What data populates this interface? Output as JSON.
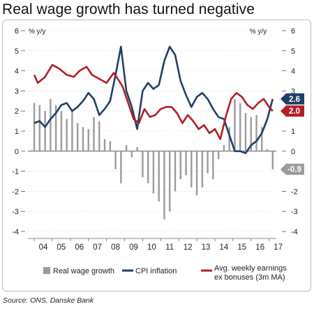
{
  "title": "Real wage growth has turned negative",
  "source": "Source: ONS, Danske Bank",
  "colors": {
    "real_wage": "#9b9b9b",
    "cpi": "#1f3f66",
    "earnings": "#b01f24",
    "grid": "#bdbdbd"
  },
  "chart_data": {
    "type": "bar+line",
    "left_axis": {
      "unit_label": "% y/y",
      "ylim": [
        -4,
        6
      ],
      "ticks": [
        "6",
        "5",
        "4",
        "3",
        "2",
        "1",
        "0",
        "-1",
        "-2",
        "-3",
        "-4"
      ]
    },
    "right_axis": {
      "unit_label": "% y/y",
      "ylim": [
        -4,
        6
      ],
      "ticks": [
        "6",
        "5",
        "4",
        "3",
        "2",
        "1",
        "0",
        "-1",
        "-2",
        "-3",
        "-4"
      ]
    },
    "x_ticks": [
      "04",
      "05",
      "06",
      "07",
      "08",
      "09",
      "10",
      "11",
      "12",
      "13",
      "14",
      "15",
      "16",
      "17"
    ],
    "x_range": [
      2004,
      2017.3
    ],
    "legend": {
      "real_wage": "Real wage growth",
      "cpi": "CPI inflation",
      "earnings_line1": "Avg. weekly earnings",
      "earnings_line2": "ex bonuses (3m MA)"
    },
    "end_labels": {
      "cpi": "2.6",
      "earnings": "2.0",
      "real_wage": "-0.9"
    },
    "series": [
      {
        "name": "Real wage growth",
        "kind": "bar",
        "axis": "left",
        "points": [
          [
            2004.0,
            2.4
          ],
          [
            2004.3,
            2.3
          ],
          [
            2004.6,
            2.0
          ],
          [
            2004.9,
            2.6
          ],
          [
            2005.2,
            2.3
          ],
          [
            2005.5,
            2.0
          ],
          [
            2005.8,
            1.6
          ],
          [
            2006.1,
            2.0
          ],
          [
            2006.4,
            1.4
          ],
          [
            2006.7,
            1.2
          ],
          [
            2007.0,
            1.1
          ],
          [
            2007.3,
            1.7
          ],
          [
            2007.6,
            1.5
          ],
          [
            2007.9,
            0.6
          ],
          [
            2008.2,
            0.5
          ],
          [
            2008.5,
            -0.9
          ],
          [
            2008.8,
            -1.6
          ],
          [
            2009.1,
            0.3
          ],
          [
            2009.4,
            -0.3
          ],
          [
            2009.7,
            0.2
          ],
          [
            2010.0,
            -1.3
          ],
          [
            2010.3,
            -1.6
          ],
          [
            2010.6,
            -2.1
          ],
          [
            2010.9,
            -2.5
          ],
          [
            2011.2,
            -3.4
          ],
          [
            2011.5,
            -3.0
          ],
          [
            2011.8,
            -2.0
          ],
          [
            2012.1,
            -1.4
          ],
          [
            2012.4,
            -1.2
          ],
          [
            2012.7,
            -1.8
          ],
          [
            2013.0,
            -2.2
          ],
          [
            2013.3,
            -1.8
          ],
          [
            2013.6,
            -1.1
          ],
          [
            2013.9,
            -1.4
          ],
          [
            2014.2,
            -0.4
          ],
          [
            2014.5,
            0.3
          ],
          [
            2014.8,
            1.2
          ],
          [
            2015.1,
            2.6
          ],
          [
            2015.4,
            2.4
          ],
          [
            2015.7,
            1.9
          ],
          [
            2016.0,
            1.7
          ],
          [
            2016.3,
            1.8
          ],
          [
            2016.6,
            1.2
          ],
          [
            2016.9,
            0.1
          ],
          [
            2017.2,
            -0.9
          ]
        ]
      },
      {
        "name": "CPI inflation",
        "kind": "line",
        "axis": "right",
        "points": [
          [
            2004.0,
            1.4
          ],
          [
            2004.3,
            1.5
          ],
          [
            2004.6,
            1.2
          ],
          [
            2004.9,
            1.6
          ],
          [
            2005.2,
            1.9
          ],
          [
            2005.5,
            2.3
          ],
          [
            2005.8,
            2.4
          ],
          [
            2006.1,
            2.0
          ],
          [
            2006.4,
            2.2
          ],
          [
            2006.7,
            2.5
          ],
          [
            2007.0,
            2.9
          ],
          [
            2007.3,
            2.6
          ],
          [
            2007.6,
            1.8
          ],
          [
            2007.9,
            2.1
          ],
          [
            2008.2,
            2.5
          ],
          [
            2008.5,
            3.8
          ],
          [
            2008.8,
            5.2
          ],
          [
            2009.1,
            3.0
          ],
          [
            2009.4,
            2.2
          ],
          [
            2009.7,
            1.1
          ],
          [
            2010.0,
            3.0
          ],
          [
            2010.3,
            3.4
          ],
          [
            2010.6,
            3.1
          ],
          [
            2010.9,
            3.3
          ],
          [
            2011.2,
            4.5
          ],
          [
            2011.5,
            5.2
          ],
          [
            2011.8,
            4.8
          ],
          [
            2012.1,
            3.5
          ],
          [
            2012.4,
            2.8
          ],
          [
            2012.7,
            2.2
          ],
          [
            2013.0,
            2.7
          ],
          [
            2013.3,
            2.9
          ],
          [
            2013.6,
            2.6
          ],
          [
            2013.9,
            2.1
          ],
          [
            2014.2,
            1.7
          ],
          [
            2014.5,
            1.6
          ],
          [
            2014.8,
            0.8
          ],
          [
            2015.1,
            0.0
          ],
          [
            2015.4,
            0.0
          ],
          [
            2015.7,
            -0.1
          ],
          [
            2016.0,
            0.3
          ],
          [
            2016.3,
            0.5
          ],
          [
            2016.6,
            0.9
          ],
          [
            2016.9,
            1.6
          ],
          [
            2017.2,
            2.6
          ]
        ]
      },
      {
        "name": "Avg. weekly earnings ex bonuses (3m MA)",
        "kind": "line",
        "axis": "right",
        "points": [
          [
            2004.0,
            3.8
          ],
          [
            2004.2,
            3.4
          ],
          [
            2004.6,
            3.7
          ],
          [
            2005.0,
            4.3
          ],
          [
            2005.4,
            4.1
          ],
          [
            2005.8,
            3.8
          ],
          [
            2006.2,
            3.7
          ],
          [
            2006.5,
            4.0
          ],
          [
            2006.9,
            4.2
          ],
          [
            2007.2,
            3.8
          ],
          [
            2007.6,
            3.6
          ],
          [
            2008.0,
            3.4
          ],
          [
            2008.4,
            3.9
          ],
          [
            2008.7,
            3.5
          ],
          [
            2008.9,
            3.2
          ],
          [
            2009.2,
            2.4
          ],
          [
            2009.5,
            1.6
          ],
          [
            2009.8,
            1.4
          ],
          [
            2010.1,
            2.1
          ],
          [
            2010.4,
            1.7
          ],
          [
            2010.7,
            1.8
          ],
          [
            2011.0,
            2.1
          ],
          [
            2011.3,
            2.2
          ],
          [
            2011.6,
            2.2
          ],
          [
            2011.9,
            1.9
          ],
          [
            2012.2,
            1.4
          ],
          [
            2012.5,
            1.8
          ],
          [
            2012.8,
            1.5
          ],
          [
            2013.1,
            1.1
          ],
          [
            2013.4,
            1.3
          ],
          [
            2013.7,
            0.9
          ],
          [
            2014.0,
            1.1
          ],
          [
            2014.3,
            0.6
          ],
          [
            2014.6,
            1.7
          ],
          [
            2014.9,
            2.6
          ],
          [
            2015.2,
            2.9
          ],
          [
            2015.5,
            2.7
          ],
          [
            2015.8,
            2.3
          ],
          [
            2016.1,
            2.1
          ],
          [
            2016.4,
            2.4
          ],
          [
            2016.7,
            2.6
          ],
          [
            2017.0,
            2.2
          ],
          [
            2017.2,
            2.0
          ]
        ]
      }
    ]
  }
}
